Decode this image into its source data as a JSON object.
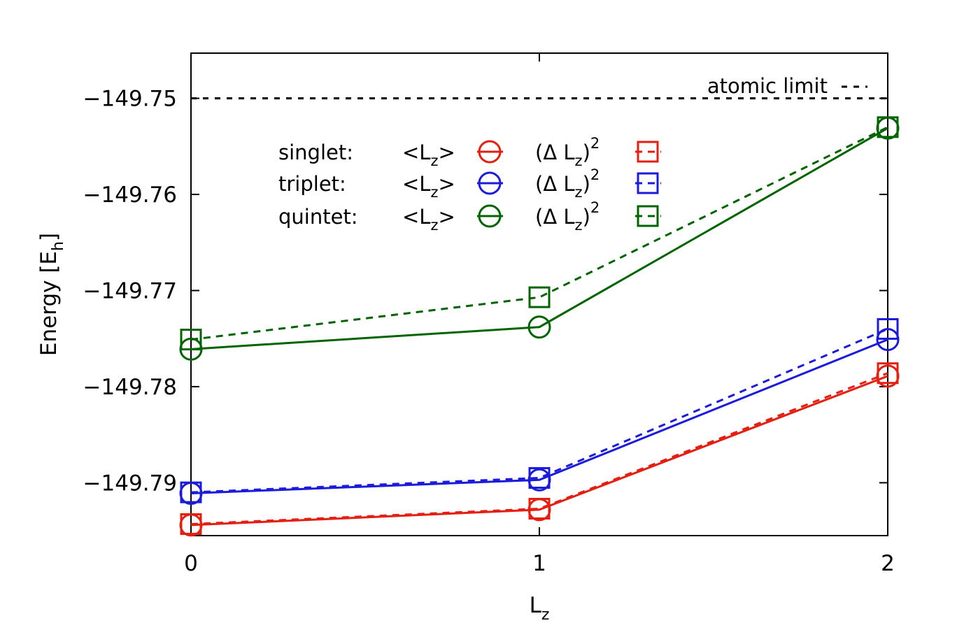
{
  "chart_data": {
    "type": "line",
    "xlabel": {
      "main": "L",
      "sub": "z"
    },
    "ylabel": {
      "main": "Energy [E",
      "sub": "h",
      "end": "]"
    },
    "xlim": [
      0,
      2
    ],
    "ylim": [
      -149.7955,
      -149.7453
    ],
    "x_ticks": [
      0,
      1,
      2
    ],
    "x_tick_labels": [
      "0",
      "1",
      "2"
    ],
    "y_ticks": [
      -149.79,
      -149.78,
      -149.77,
      -149.76,
      -149.75
    ],
    "y_tick_labels": [
      "−149.79",
      "−149.78",
      "−149.77",
      "−149.76",
      "−149.75"
    ],
    "grid": false,
    "legend_position": "top-left",
    "reference_line": {
      "name": "atomic limit",
      "y": -149.75,
      "color": "#000000",
      "dash": "dashed"
    },
    "series": [
      {
        "name": "singlet:",
        "color": "#e51e10",
        "x": [
          0,
          1,
          2
        ],
        "lz_values": [
          -149.7944,
          -149.7928,
          -149.7789
        ],
        "dlz2_values": [
          -149.7943,
          -149.7927,
          -149.7786
        ]
      },
      {
        "name": "triplet:",
        "color": "#1b1bdd",
        "x": [
          0,
          1,
          2
        ],
        "lz_values": [
          -149.7911,
          -149.7897,
          -149.7751
        ],
        "dlz2_values": [
          -149.791,
          -149.7895,
          -149.774
        ]
      },
      {
        "name": "quintet:",
        "color": "#006400",
        "x": [
          0,
          1,
          2
        ],
        "lz_values": [
          -149.7761,
          -149.7738,
          -149.7531
        ],
        "dlz2_values": [
          -149.7751,
          -149.7707,
          -149.753
        ]
      }
    ]
  },
  "legend": {
    "lz_label_open": "<L",
    "lz_label_sub": "z",
    "lz_label_close": ">",
    "dlz_label_open": "(Δ L",
    "dlz_label_sub": "z",
    "dlz_label_close": ")",
    "dlz_label_sup": "2"
  }
}
